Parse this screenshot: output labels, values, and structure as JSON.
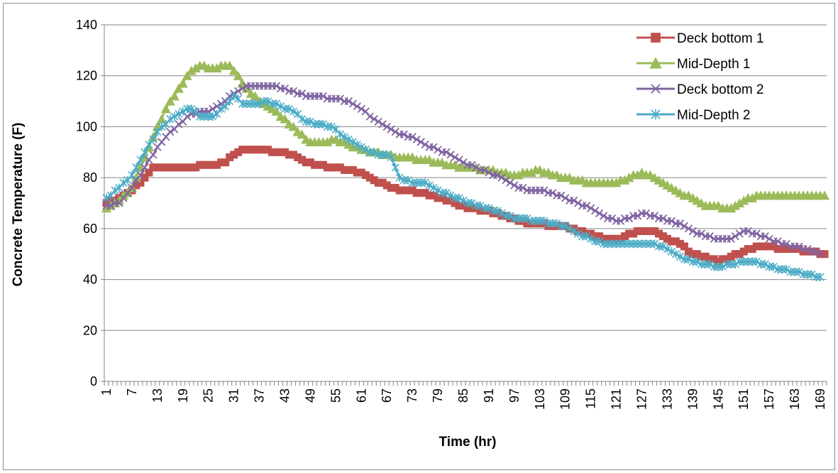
{
  "chart_data": {
    "type": "line",
    "title": "",
    "xlabel": "Time (hr)",
    "ylabel": "Concrete Temperature (F)",
    "ylim": [
      0,
      140
    ],
    "yticks": [
      "0",
      "20",
      "40",
      "60",
      "80",
      "100",
      "120",
      "140"
    ],
    "xlim": [
      1,
      170
    ],
    "xticks": [
      "1",
      "7",
      "13",
      "19",
      "25",
      "31",
      "37",
      "43",
      "49",
      "55",
      "61",
      "67",
      "73",
      "79",
      "85",
      "91",
      "97",
      "103",
      "109",
      "115",
      "121",
      "127",
      "133",
      "139",
      "145",
      "151",
      "157",
      "163",
      "169"
    ],
    "grid": "horizontal",
    "legend_position": "top-right",
    "series": [
      {
        "name": "Deck bottom 1",
        "color": "#c0504d",
        "marker": "square",
        "keypoints": [
          [
            1,
            70
          ],
          [
            4,
            72
          ],
          [
            7,
            75
          ],
          [
            10,
            80
          ],
          [
            12,
            84
          ],
          [
            20,
            84
          ],
          [
            26,
            85
          ],
          [
            29,
            86
          ],
          [
            31,
            89
          ],
          [
            33,
            91
          ],
          [
            39,
            91
          ],
          [
            40,
            90
          ],
          [
            43,
            90
          ],
          [
            46,
            88
          ],
          [
            48,
            86
          ],
          [
            50,
            85
          ],
          [
            55,
            84
          ],
          [
            58,
            83
          ],
          [
            61,
            82
          ],
          [
            64,
            79
          ],
          [
            67,
            77
          ],
          [
            70,
            75
          ],
          [
            76,
            74
          ],
          [
            79,
            72
          ],
          [
            83,
            70
          ],
          [
            86,
            68
          ],
          [
            91,
            67
          ],
          [
            94,
            65
          ],
          [
            97,
            64
          ],
          [
            100,
            62
          ],
          [
            103,
            62
          ],
          [
            106,
            61
          ],
          [
            109,
            61
          ],
          [
            112,
            59
          ],
          [
            115,
            58
          ],
          [
            118,
            56
          ],
          [
            122,
            56
          ],
          [
            124,
            58
          ],
          [
            127,
            59
          ],
          [
            130,
            59
          ],
          [
            133,
            56
          ],
          [
            136,
            54
          ],
          [
            139,
            50
          ],
          [
            142,
            49
          ],
          [
            145,
            47
          ],
          [
            148,
            49
          ],
          [
            151,
            51
          ],
          [
            154,
            53
          ],
          [
            157,
            53
          ],
          [
            160,
            52
          ],
          [
            163,
            52
          ],
          [
            166,
            51
          ],
          [
            170,
            50
          ]
        ]
      },
      {
        "name": "Mid-Depth 1",
        "color": "#9bbb59",
        "marker": "triangle",
        "keypoints": [
          [
            1,
            68
          ],
          [
            4,
            71
          ],
          [
            7,
            76
          ],
          [
            10,
            88
          ],
          [
            13,
            100
          ],
          [
            16,
            110
          ],
          [
            19,
            117
          ],
          [
            21,
            122
          ],
          [
            23,
            124
          ],
          [
            26,
            123
          ],
          [
            30,
            124
          ],
          [
            31,
            122
          ],
          [
            33,
            117
          ],
          [
            35,
            113
          ],
          [
            37,
            110
          ],
          [
            40,
            107
          ],
          [
            43,
            103
          ],
          [
            46,
            98
          ],
          [
            49,
            94
          ],
          [
            52,
            94
          ],
          [
            55,
            95
          ],
          [
            58,
            93
          ],
          [
            61,
            91
          ],
          [
            64,
            90
          ],
          [
            67,
            89
          ],
          [
            70,
            88
          ],
          [
            76,
            87
          ],
          [
            79,
            86
          ],
          [
            85,
            84
          ],
          [
            91,
            83
          ],
          [
            94,
            82
          ],
          [
            97,
            81
          ],
          [
            100,
            82
          ],
          [
            103,
            83
          ],
          [
            106,
            81
          ],
          [
            109,
            80
          ],
          [
            112,
            79
          ],
          [
            115,
            78
          ],
          [
            121,
            78
          ],
          [
            124,
            80
          ],
          [
            127,
            82
          ],
          [
            130,
            80
          ],
          [
            133,
            77
          ],
          [
            136,
            74
          ],
          [
            139,
            72
          ],
          [
            142,
            69
          ],
          [
            148,
            68
          ],
          [
            151,
            71
          ],
          [
            154,
            73
          ],
          [
            170,
            73
          ]
        ]
      },
      {
        "name": "Deck bottom 2",
        "color": "#8064a2",
        "marker": "x",
        "keypoints": [
          [
            1,
            69
          ],
          [
            4,
            70
          ],
          [
            7,
            76
          ],
          [
            10,
            84
          ],
          [
            13,
            92
          ],
          [
            16,
            98
          ],
          [
            19,
            102
          ],
          [
            21,
            105
          ],
          [
            25,
            106
          ],
          [
            28,
            109
          ],
          [
            31,
            113
          ],
          [
            34,
            116
          ],
          [
            40,
            116
          ],
          [
            43,
            115
          ],
          [
            46,
            113
          ],
          [
            49,
            112
          ],
          [
            55,
            111
          ],
          [
            58,
            110
          ],
          [
            61,
            107
          ],
          [
            64,
            103
          ],
          [
            67,
            100
          ],
          [
            70,
            97
          ],
          [
            73,
            96
          ],
          [
            76,
            93
          ],
          [
            79,
            91
          ],
          [
            82,
            89
          ],
          [
            85,
            86
          ],
          [
            88,
            84
          ],
          [
            91,
            82
          ],
          [
            94,
            80
          ],
          [
            97,
            77
          ],
          [
            100,
            75
          ],
          [
            103,
            75
          ],
          [
            106,
            74
          ],
          [
            109,
            72
          ],
          [
            112,
            70
          ],
          [
            115,
            68
          ],
          [
            118,
            65
          ],
          [
            121,
            63
          ],
          [
            124,
            64
          ],
          [
            127,
            66
          ],
          [
            130,
            65
          ],
          [
            133,
            63
          ],
          [
            136,
            62
          ],
          [
            139,
            59
          ],
          [
            142,
            57
          ],
          [
            145,
            56
          ],
          [
            148,
            56
          ],
          [
            151,
            59
          ],
          [
            154,
            58
          ],
          [
            157,
            56
          ],
          [
            160,
            54
          ],
          [
            163,
            53
          ],
          [
            166,
            52
          ],
          [
            169,
            50
          ]
        ]
      },
      {
        "name": "Mid-Depth 2",
        "color": "#4bacc6",
        "marker": "star",
        "keypoints": [
          [
            1,
            72
          ],
          [
            4,
            76
          ],
          [
            7,
            81
          ],
          [
            10,
            90
          ],
          [
            13,
            98
          ],
          [
            16,
            103
          ],
          [
            19,
            106
          ],
          [
            21,
            107
          ],
          [
            23,
            104
          ],
          [
            26,
            104
          ],
          [
            29,
            108
          ],
          [
            31,
            112
          ],
          [
            33,
            109
          ],
          [
            36,
            109
          ],
          [
            39,
            110
          ],
          [
            42,
            108
          ],
          [
            45,
            106
          ],
          [
            48,
            102
          ],
          [
            51,
            101
          ],
          [
            54,
            100
          ],
          [
            57,
            96
          ],
          [
            60,
            93
          ],
          [
            63,
            90
          ],
          [
            66,
            89
          ],
          [
            68,
            88
          ],
          [
            70,
            80
          ],
          [
            73,
            78
          ],
          [
            76,
            78
          ],
          [
            79,
            75
          ],
          [
            82,
            73
          ],
          [
            85,
            71
          ],
          [
            88,
            69
          ],
          [
            91,
            68
          ],
          [
            94,
            66
          ],
          [
            97,
            64
          ],
          [
            103,
            63
          ],
          [
            106,
            62
          ],
          [
            109,
            61
          ],
          [
            112,
            58
          ],
          [
            115,
            56
          ],
          [
            118,
            54
          ],
          [
            124,
            54
          ],
          [
            130,
            54
          ],
          [
            133,
            52
          ],
          [
            136,
            49
          ],
          [
            139,
            47
          ],
          [
            145,
            45
          ],
          [
            148,
            46
          ],
          [
            151,
            47
          ],
          [
            154,
            47
          ],
          [
            157,
            45
          ],
          [
            160,
            44
          ],
          [
            163,
            43
          ],
          [
            166,
            42
          ],
          [
            169,
            41
          ]
        ]
      }
    ]
  }
}
